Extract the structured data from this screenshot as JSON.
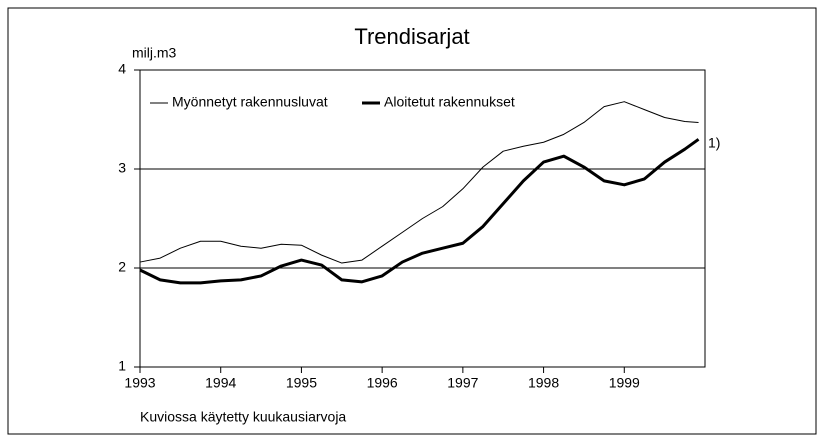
{
  "chart_data": {
    "type": "line",
    "title": "Trendisarjat",
    "y_label": "milj.m3",
    "annotation": "1)",
    "footnote": "Kuviossa käytetty kuukausiarvoja",
    "x": [
      1993,
      1993.25,
      1993.5,
      1993.75,
      1994,
      1994.25,
      1994.5,
      1994.75,
      1995,
      1995.25,
      1995.5,
      1995.75,
      1996,
      1996.25,
      1996.5,
      1996.75,
      1997,
      1997.25,
      1997.5,
      1997.75,
      1998,
      1998.25,
      1998.5,
      1998.75,
      1999,
      1999.25,
      1999.5,
      1999.75,
      1999.92
    ],
    "series": [
      {
        "name": "Myönnetyt rakennusluvat",
        "color": "#000000",
        "width": 1,
        "values": [
          2.06,
          2.1,
          2.2,
          2.27,
          2.27,
          2.22,
          2.2,
          2.24,
          2.23,
          2.13,
          2.05,
          2.08,
          2.22,
          2.36,
          2.5,
          2.62,
          2.8,
          3.02,
          3.18,
          3.23,
          3.27,
          3.35,
          3.47,
          3.63,
          3.68,
          3.6,
          3.52,
          3.48,
          3.47
        ]
      },
      {
        "name": "Aloitetut rakennukset",
        "color": "#000000",
        "width": 3,
        "values": [
          1.98,
          1.88,
          1.85,
          1.85,
          1.87,
          1.88,
          1.92,
          2.02,
          2.08,
          2.03,
          1.88,
          1.86,
          1.92,
          2.06,
          2.15,
          2.2,
          2.25,
          2.42,
          2.65,
          2.88,
          3.07,
          3.13,
          3.02,
          2.88,
          2.84,
          2.9,
          3.07,
          3.2,
          3.3
        ]
      }
    ],
    "xlim": [
      1993,
      2000
    ],
    "xticks": [
      1993,
      1994,
      1995,
      1996,
      1997,
      1998,
      1999
    ],
    "ylim": [
      1,
      4
    ],
    "yticks": [
      1,
      2,
      3,
      4
    ],
    "grid": true
  }
}
